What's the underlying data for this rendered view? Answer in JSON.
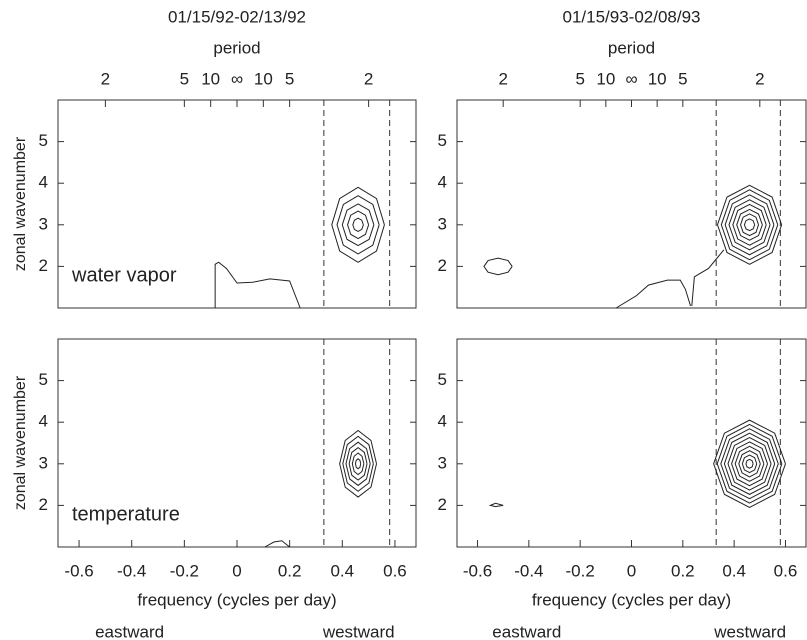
{
  "chart_data": [
    {
      "type": "contour",
      "title": "01/15/92-02/13/92",
      "x2label": "period",
      "x2ticks": [
        {
          "value": -0.5,
          "label": "2"
        },
        {
          "value": -0.2,
          "label": "5"
        },
        {
          "value": -0.1,
          "label": "10"
        },
        {
          "value": 0,
          "label": "∞"
        },
        {
          "value": 0.1,
          "label": "10"
        },
        {
          "value": 0.2,
          "label": "5"
        },
        {
          "value": 0.5,
          "label": "2"
        }
      ],
      "ylabel": "zonal wavenumber",
      "annotation": "water vapor",
      "xlim": [
        -0.68,
        0.68
      ],
      "ylim": [
        1,
        6
      ],
      "yticks": [
        2,
        3,
        4,
        5
      ],
      "vlines": [
        0.33,
        0.58
      ],
      "contours": [
        {
          "x": [
            -0.083,
            -0.083,
            -0.07,
            -0.04,
            0,
            0.06,
            0.125,
            0.2,
            0.24
          ],
          "y": [
            1,
            2.05,
            2.1,
            1.95,
            1.6,
            1.62,
            1.7,
            1.65,
            1
          ]
        },
        {
          "x": [
            0.56,
            0.53,
            0.46,
            0.39,
            0.36,
            0.39,
            0.46,
            0.53,
            0.56
          ],
          "y": [
            3,
            3.63,
            3.9,
            3.63,
            3,
            2.37,
            2.1,
            2.37,
            3
          ]
        },
        {
          "x": [
            0.54,
            0.516,
            0.46,
            0.404,
            0.38,
            0.404,
            0.46,
            0.516,
            0.54
          ],
          "y": [
            3,
            3.49,
            3.7,
            3.49,
            3,
            2.51,
            2.3,
            2.51,
            3
          ]
        },
        {
          "x": [
            0.52,
            0.502,
            0.46,
            0.418,
            0.4,
            0.418,
            0.46,
            0.502,
            0.52
          ],
          "y": [
            3,
            3.35,
            3.5,
            3.35,
            3,
            2.65,
            2.5,
            2.65,
            3
          ]
        },
        {
          "x": [
            0.5,
            0.488,
            0.46,
            0.432,
            0.42,
            0.432,
            0.46,
            0.488,
            0.5
          ],
          "y": [
            3,
            3.23,
            3.33,
            3.23,
            3,
            2.77,
            2.67,
            2.77,
            3
          ]
        },
        {
          "x": [
            0.48,
            0.474,
            0.46,
            0.446,
            0.44,
            0.446,
            0.46,
            0.474,
            0.48
          ],
          "y": [
            3,
            3.11,
            3.16,
            3.11,
            3,
            2.89,
            2.84,
            2.89,
            3
          ]
        }
      ]
    },
    {
      "type": "contour",
      "title": "01/15/93-02/08/93",
      "x2label": "period",
      "x2ticks": [
        {
          "value": -0.5,
          "label": "2"
        },
        {
          "value": -0.2,
          "label": "5"
        },
        {
          "value": -0.1,
          "label": "10"
        },
        {
          "value": 0,
          "label": "∞"
        },
        {
          "value": 0.1,
          "label": "10"
        },
        {
          "value": 0.2,
          "label": "5"
        },
        {
          "value": 0.5,
          "label": "2"
        }
      ],
      "xlim": [
        -0.68,
        0.68
      ],
      "ylim": [
        1,
        6
      ],
      "yticks": [
        2,
        3,
        4,
        5
      ],
      "vlines": [
        0.33,
        0.58
      ],
      "contours": [
        {
          "x": [
            -0.465,
            -0.481,
            -0.52,
            -0.559,
            -0.575,
            -0.559,
            -0.52,
            -0.481,
            -0.465
          ],
          "y": [
            2,
            2.14,
            2.2,
            2.14,
            2,
            1.86,
            1.8,
            1.86,
            2
          ]
        },
        {
          "x": [
            -0.06,
            0.02,
            0.066,
            0.14,
            0.19,
            0.21,
            0.23
          ],
          "y": [
            1,
            1.3,
            1.55,
            1.67,
            1.67,
            1.45,
            1.05
          ]
        },
        {
          "x": [
            0.235,
            0.245,
            0.3,
            0.34,
            0.36
          ],
          "y": [
            1.05,
            1.75,
            1.95,
            2.25,
            2.4
          ]
        },
        {
          "x": [
            0.585,
            0.548,
            0.46,
            0.372,
            0.335,
            0.372,
            0.46,
            0.548,
            0.585
          ],
          "y": [
            3,
            3.665,
            3.95,
            3.665,
            3,
            2.335,
            2.05,
            2.335,
            3
          ]
        },
        {
          "x": [
            0.57,
            0.537,
            0.46,
            0.383,
            0.35,
            0.383,
            0.46,
            0.537,
            0.57
          ],
          "y": [
            3,
            3.588,
            3.84,
            3.588,
            3,
            2.412,
            2.16,
            2.412,
            3
          ]
        },
        {
          "x": [
            0.555,
            0.527,
            0.46,
            0.393,
            0.365,
            0.393,
            0.46,
            0.527,
            0.555
          ],
          "y": [
            3,
            3.504,
            3.72,
            3.504,
            3,
            2.496,
            2.28,
            2.496,
            3
          ]
        },
        {
          "x": [
            0.54,
            0.516,
            0.46,
            0.404,
            0.38,
            0.404,
            0.46,
            0.516,
            0.54
          ],
          "y": [
            3,
            3.42,
            3.6,
            3.42,
            3,
            2.58,
            2.4,
            2.58,
            3
          ]
        },
        {
          "x": [
            0.525,
            0.506,
            0.46,
            0.414,
            0.395,
            0.414,
            0.46,
            0.506,
            0.525
          ],
          "y": [
            3,
            3.343,
            3.49,
            3.343,
            3,
            2.657,
            2.51,
            2.657,
            3
          ]
        },
        {
          "x": [
            0.51,
            0.495,
            0.46,
            0.425,
            0.41,
            0.425,
            0.46,
            0.495,
            0.51
          ],
          "y": [
            3,
            3.259,
            3.37,
            3.259,
            3,
            2.741,
            2.63,
            2.741,
            3
          ]
        },
        {
          "x": [
            0.495,
            0.485,
            0.46,
            0.435,
            0.425,
            0.435,
            0.46,
            0.485,
            0.495
          ],
          "y": [
            3,
            3.182,
            3.26,
            3.182,
            3,
            2.818,
            2.74,
            2.818,
            3
          ]
        },
        {
          "x": [
            0.48,
            0.474,
            0.46,
            0.446,
            0.44,
            0.446,
            0.46,
            0.474,
            0.48
          ],
          "y": [
            3,
            3.098,
            3.14,
            3.098,
            3,
            2.902,
            2.86,
            2.902,
            3
          ]
        }
      ]
    },
    {
      "type": "contour",
      "ylabel": "zonal wavenumber",
      "annotation": "temperature",
      "xlabel": "frequency (cycles per day)",
      "directions": [
        "eastward",
        "westward"
      ],
      "xlim": [
        -0.68,
        0.68
      ],
      "ylim": [
        1,
        6
      ],
      "xticks": [
        -0.6,
        -0.4,
        -0.2,
        0,
        0.2,
        0.4,
        0.6
      ],
      "yticks": [
        2,
        3,
        4,
        5
      ],
      "vlines": [
        0.33,
        0.58
      ],
      "contours": [
        {
          "x": [
            0.106,
            0.14,
            0.17,
            0.2
          ],
          "y": [
            1,
            1.12,
            1.15,
            1
          ]
        },
        {
          "x": [
            0.53,
            0.509,
            0.46,
            0.411,
            0.39,
            0.411,
            0.46,
            0.509,
            0.53
          ],
          "y": [
            3,
            3.56,
            3.8,
            3.56,
            3,
            2.44,
            2.2,
            2.44,
            3
          ]
        },
        {
          "x": [
            0.518,
            0.501,
            0.46,
            0.419,
            0.402,
            0.419,
            0.46,
            0.501,
            0.518
          ],
          "y": [
            3,
            3.462,
            3.66,
            3.462,
            3,
            2.538,
            2.34,
            2.538,
            3
          ]
        },
        {
          "x": [
            0.506,
            0.492,
            0.46,
            0.428,
            0.414,
            0.428,
            0.46,
            0.492,
            0.506
          ],
          "y": [
            3,
            3.364,
            3.52,
            3.364,
            3,
            2.636,
            2.48,
            2.636,
            3
          ]
        },
        {
          "x": [
            0.494,
            0.484,
            0.46,
            0.436,
            0.426,
            0.436,
            0.46,
            0.484,
            0.494
          ],
          "y": [
            3,
            3.273,
            3.39,
            3.273,
            3,
            2.727,
            2.61,
            2.727,
            3
          ]
        },
        {
          "x": [
            0.482,
            0.475,
            0.46,
            0.445,
            0.438,
            0.445,
            0.46,
            0.475,
            0.482
          ],
          "y": [
            3,
            3.182,
            3.26,
            3.182,
            3,
            2.818,
            2.74,
            2.818,
            3
          ]
        },
        {
          "x": [
            0.47,
            0.467,
            0.46,
            0.453,
            0.45,
            0.453,
            0.46,
            0.467,
            0.47
          ],
          "y": [
            3,
            3.084,
            3.12,
            3.084,
            3,
            2.916,
            2.88,
            2.916,
            3
          ]
        }
      ]
    },
    {
      "type": "contour",
      "xlabel": "frequency (cycles per day)",
      "directions": [
        "eastward",
        "westward"
      ],
      "xlim": [
        -0.68,
        0.68
      ],
      "ylim": [
        1,
        6
      ],
      "xticks": [
        -0.6,
        -0.4,
        -0.2,
        0,
        0.2,
        0.4,
        0.6
      ],
      "yticks": [
        2,
        3,
        4,
        5
      ],
      "vlines": [
        0.33,
        0.58
      ],
      "contours": [
        {
          "x": [
            -0.5,
            -0.53,
            -0.55,
            -0.53,
            -0.5
          ],
          "y": [
            2,
            2.05,
            2,
            1.97,
            2
          ]
        },
        {
          "x": [
            0.6,
            0.558,
            0.46,
            0.362,
            0.32,
            0.362,
            0.46,
            0.558,
            0.6
          ],
          "y": [
            3,
            3.735,
            4.05,
            3.735,
            3,
            2.265,
            1.95,
            2.265,
            3
          ]
        },
        {
          "x": [
            0.586,
            0.548,
            0.46,
            0.372,
            0.334,
            0.372,
            0.46,
            0.548,
            0.586
          ],
          "y": [
            3,
            3.662,
            3.945,
            3.662,
            3,
            2.338,
            2.055,
            2.338,
            3
          ]
        },
        {
          "x": [
            0.572,
            0.538,
            0.46,
            0.382,
            0.348,
            0.382,
            0.46,
            0.538,
            0.572
          ],
          "y": [
            3,
            3.588,
            3.84,
            3.588,
            3,
            2.412,
            2.16,
            2.412,
            3
          ]
        },
        {
          "x": [
            0.558,
            0.529,
            0.46,
            0.391,
            0.362,
            0.391,
            0.46,
            0.529,
            0.558
          ],
          "y": [
            3,
            3.515,
            3.735,
            3.515,
            3,
            2.485,
            2.265,
            2.485,
            3
          ]
        },
        {
          "x": [
            0.544,
            0.519,
            0.46,
            0.401,
            0.376,
            0.401,
            0.46,
            0.519,
            0.544
          ],
          "y": [
            3,
            3.441,
            3.63,
            3.441,
            3,
            2.559,
            2.37,
            2.559,
            3
          ]
        },
        {
          "x": [
            0.53,
            0.509,
            0.46,
            0.411,
            0.39,
            0.411,
            0.46,
            0.509,
            0.53
          ],
          "y": [
            3,
            3.368,
            3.525,
            3.368,
            3,
            2.632,
            2.475,
            2.632,
            3
          ]
        },
        {
          "x": [
            0.516,
            0.499,
            0.46,
            0.421,
            0.404,
            0.421,
            0.46,
            0.499,
            0.516
          ],
          "y": [
            3,
            3.294,
            3.42,
            3.294,
            3,
            2.706,
            2.58,
            2.706,
            3
          ]
        },
        {
          "x": [
            0.502,
            0.489,
            0.46,
            0.431,
            0.418,
            0.431,
            0.46,
            0.489,
            0.502
          ],
          "y": [
            3,
            3.22,
            3.315,
            3.22,
            3,
            2.78,
            2.685,
            2.78,
            3
          ]
        },
        {
          "x": [
            0.488,
            0.48,
            0.46,
            0.44,
            0.432,
            0.44,
            0.46,
            0.48,
            0.488
          ],
          "y": [
            3,
            3.147,
            3.21,
            3.147,
            3,
            2.853,
            2.79,
            2.853,
            3
          ]
        },
        {
          "x": [
            0.474,
            0.47,
            0.46,
            0.45,
            0.446,
            0.45,
            0.46,
            0.47,
            0.474
          ],
          "y": [
            3,
            3.074,
            3.105,
            3.074,
            3,
            2.926,
            2.895,
            2.926,
            3
          ]
        }
      ]
    }
  ]
}
